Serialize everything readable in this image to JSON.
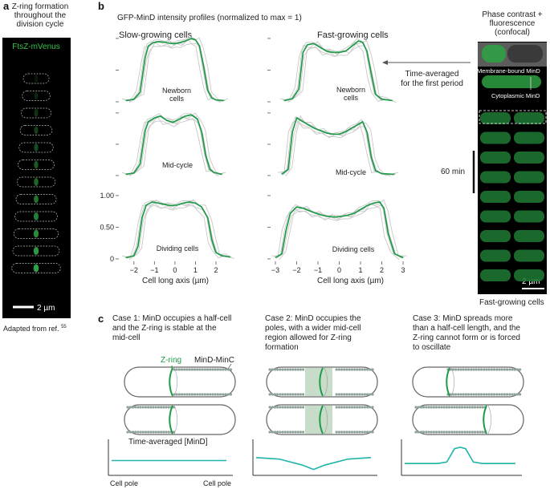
{
  "panel_a": {
    "letter": "a",
    "title_line1": "Z-ring formation",
    "title_line2": "throughout the",
    "title_line3": "division cycle",
    "channel_label": "FtsZ-mVenus",
    "scale_bar_label": "2 µm",
    "footnote": "Adapted from ref.",
    "footnote_ref": "55"
  },
  "panel_b": {
    "letter": "b",
    "title": "GFP-MinD intensity profiles (normalized to max = 1)",
    "col1_title": "Slow-growing cells",
    "col2_title": "Fast-growing cells",
    "row_labels": {
      "newborn_line1": "Newborn",
      "newborn_line2": "cells",
      "midcycle": "Mid-cycle",
      "dividing": "Dividing cells"
    },
    "xlabel": "Cell long axis (µm)",
    "time_averaged_line1": "Time-averaged",
    "time_averaged_line2": "for the first period",
    "micro": {
      "title_line1": "Phase contrast +",
      "title_line2": "fluorescence",
      "title_line3": "(confocal)",
      "membrane_label": "Membrane-bound MinD",
      "cytoplasmic_label": "Cytoplasmic MinD",
      "time_bar_label": "60 min",
      "scale_bar_label": "2 µm",
      "caption": "Fast-growing cells"
    }
  },
  "panel_c": {
    "letter": "c",
    "case1_line1": "Case 1:  MinD occupies a half-cell",
    "case1_line2": "and the Z-ring is stable at the",
    "case1_line3": "mid-cell",
    "case2_line1": "Case 2:  MinD occupies the",
    "case2_line2": "poles, with a wider mid-cell",
    "case2_line3": "region allowed for Z-ring",
    "case2_line4": "formation",
    "case3_line1": "Case 3:  MinD spreads more",
    "case3_line2": "than a half-cell length, and the",
    "case3_line3": "Z-ring cannot form or is forced",
    "case3_line4": "to oscillate",
    "zring_label": "Z-ring",
    "minc_label": "MinD-MinC",
    "avg_label": "Time-averaged [MinD]",
    "pole_left": "Cell pole",
    "pole_right": "Cell pole"
  },
  "colors": {
    "green": "#1e9a48",
    "teal": "#1fb5a8",
    "gray_trace": "#c8c8c8",
    "fluor_green": "#2fa044",
    "bead_gray": "#8fa39a"
  },
  "chart_data": [
    {
      "type": "line",
      "title": "Slow-growing cells",
      "xlabel": "Cell long axis (µm)",
      "xlim": [
        -2.5,
        2.9
      ],
      "xticks": [
        -2,
        -1,
        0,
        1,
        2
      ],
      "ylim": [
        0,
        1.05
      ],
      "yticks": [
        0,
        0.5,
        1.0
      ],
      "ytick_labels": [
        "0",
        "0.50",
        "1.00"
      ],
      "panels": [
        {
          "row": "Newborn cells",
          "mean": {
            "x": [
              -2.4,
              -2.0,
              -1.7,
              -1.45,
              -1.3,
              -1.1,
              -0.8,
              -0.5,
              -0.2,
              0.0,
              0.2,
              0.5,
              0.8,
              1.0,
              1.2,
              1.4,
              1.6,
              1.8,
              2.0,
              2.4
            ],
            "y": [
              0.02,
              0.04,
              0.15,
              0.7,
              0.88,
              0.93,
              0.95,
              0.94,
              0.92,
              0.92,
              0.93,
              0.96,
              1.0,
              0.98,
              0.88,
              0.55,
              0.18,
              0.06,
              0.03,
              0.02
            ]
          }
        },
        {
          "row": "Mid-cycle",
          "mean": {
            "x": [
              -2.4,
              -2.0,
              -1.7,
              -1.45,
              -1.3,
              -1.0,
              -0.7,
              -0.4,
              -0.1,
              0.2,
              0.5,
              0.8,
              1.1,
              1.3,
              1.5,
              1.7,
              1.9,
              2.3
            ],
            "y": [
              0.02,
              0.04,
              0.18,
              0.72,
              0.86,
              0.92,
              0.95,
              0.88,
              0.85,
              0.9,
              0.95,
              0.97,
              0.9,
              0.7,
              0.32,
              0.1,
              0.05,
              0.02
            ]
          }
        },
        {
          "row": "Dividing cells",
          "mean": {
            "x": [
              -2.4,
              -2.0,
              -1.8,
              -1.6,
              -1.4,
              -1.1,
              -0.8,
              -0.5,
              -0.2,
              0.1,
              0.4,
              0.7,
              1.0,
              1.3,
              1.6,
              1.8,
              2.0,
              2.3,
              2.7
            ],
            "y": [
              0.02,
              0.05,
              0.2,
              0.65,
              0.85,
              0.9,
              0.88,
              0.86,
              0.84,
              0.85,
              0.88,
              0.9,
              0.88,
              0.82,
              0.65,
              0.3,
              0.1,
              0.05,
              0.03
            ]
          }
        }
      ]
    },
    {
      "type": "line",
      "title": "Fast-growing cells",
      "xlabel": "Cell long axis (µm)",
      "xlim": [
        -3.0,
        3.3
      ],
      "xticks": [
        -3,
        -2,
        -1,
        0,
        1,
        2,
        3
      ],
      "ylim": [
        0,
        1.05
      ],
      "panels": [
        {
          "row": "Newborn cells",
          "mean": {
            "x": [
              -2.6,
              -2.2,
              -1.9,
              -1.7,
              -1.5,
              -1.2,
              -0.9,
              -0.6,
              -0.3,
              0.0,
              0.3,
              0.6,
              0.9,
              1.1,
              1.3,
              1.5,
              1.7,
              2.0,
              2.5
            ],
            "y": [
              0.02,
              0.05,
              0.2,
              0.78,
              0.9,
              0.92,
              0.86,
              0.8,
              0.78,
              0.78,
              0.8,
              0.88,
              0.96,
              0.94,
              0.8,
              0.45,
              0.12,
              0.04,
              0.02
            ]
          }
        },
        {
          "row": "Mid-cycle",
          "mean": {
            "x": [
              -2.7,
              -2.4,
              -2.2,
              -2.0,
              -1.8,
              -1.5,
              -1.2,
              -0.9,
              -0.6,
              -0.3,
              0.0,
              0.3,
              0.6,
              0.9,
              1.1,
              1.3,
              1.5,
              1.7,
              2.0,
              2.6
            ],
            "y": [
              0.02,
              0.1,
              0.7,
              0.92,
              0.88,
              0.82,
              0.76,
              0.72,
              0.68,
              0.66,
              0.66,
              0.7,
              0.76,
              0.82,
              0.86,
              0.7,
              0.3,
              0.08,
              0.03,
              0.02
            ]
          }
        },
        {
          "row": "Dividing cells",
          "mean": {
            "x": [
              -3.0,
              -2.7,
              -2.5,
              -2.3,
              -2.0,
              -1.7,
              -1.4,
              -1.1,
              -0.8,
              -0.5,
              -0.2,
              0.1,
              0.4,
              0.7,
              1.0,
              1.3,
              1.6,
              1.9,
              2.1,
              2.3,
              2.6,
              3.0
            ],
            "y": [
              0.02,
              0.08,
              0.45,
              0.72,
              0.82,
              0.8,
              0.76,
              0.72,
              0.69,
              0.67,
              0.66,
              0.67,
              0.69,
              0.72,
              0.78,
              0.84,
              0.88,
              0.9,
              0.8,
              0.4,
              0.08,
              0.02
            ]
          }
        }
      ]
    },
    {
      "type": "line",
      "title": "Time-averaged [MinD]",
      "xlabel": "",
      "series": [
        {
          "name": "Case 1",
          "x": [
            0,
            1
          ],
          "y": [
            0.5,
            0.5
          ]
        },
        {
          "name": "Case 2",
          "x": [
            0,
            0.2,
            0.4,
            0.5,
            0.6,
            0.8,
            1
          ],
          "y": [
            0.6,
            0.55,
            0.35,
            0.2,
            0.35,
            0.55,
            0.6
          ]
        },
        {
          "name": "Case 3",
          "x": [
            0,
            0.3,
            0.38,
            0.45,
            0.5,
            0.55,
            0.62,
            0.7,
            1
          ],
          "y": [
            0.4,
            0.4,
            0.45,
            0.9,
            0.95,
            0.9,
            0.45,
            0.4,
            0.4
          ]
        }
      ]
    }
  ]
}
